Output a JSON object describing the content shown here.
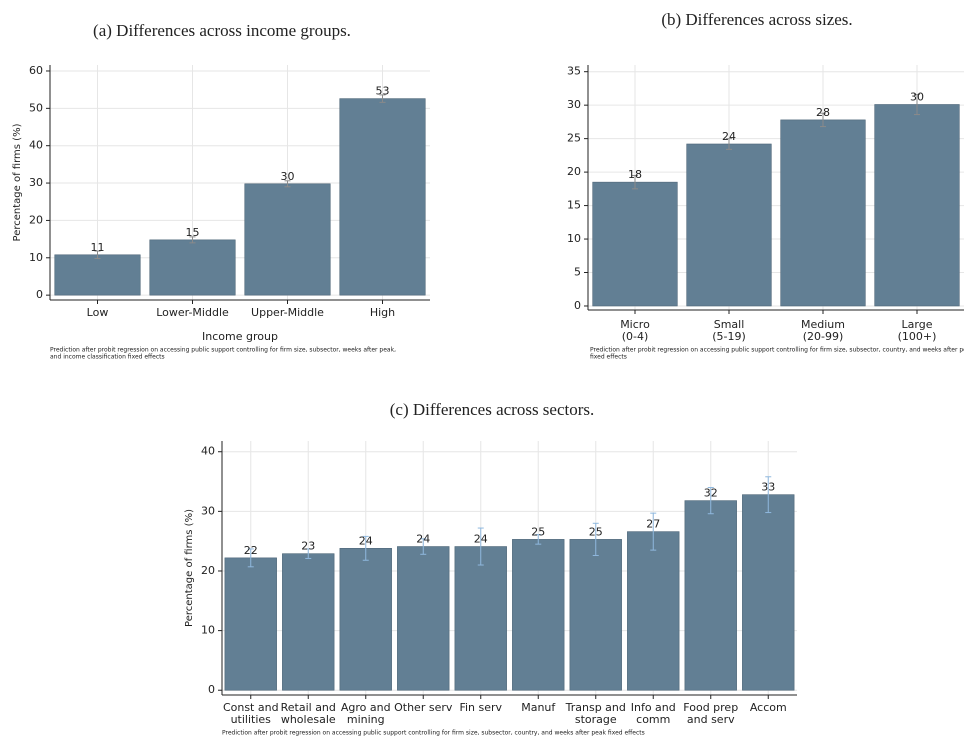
{
  "chart_data": [
    {
      "type": "bar",
      "title": "(a) Differences across income groups.",
      "categories": [
        [
          "Low"
        ],
        [
          "Lower-Middle"
        ],
        [
          "Upper-Middle"
        ],
        [
          "High"
        ]
      ],
      "values": [
        10.8,
        14.8,
        29.8,
        52.6
      ],
      "value_labels": [
        "11",
        "15",
        "30",
        "53"
      ],
      "errors": [
        1.0,
        0.8,
        0.8,
        1.0
      ],
      "ylim": [
        -1.3,
        61.6
      ],
      "yticks": [
        0,
        10,
        20,
        30,
        40,
        50,
        60
      ],
      "ylabel": "Percentage of firms (%)",
      "xlabel": "Income group",
      "note": [
        "Prediction after probit regression on accessing public support controlling for firm size, subsector, weeks after peak,",
        "and income classification fixed effects"
      ],
      "color": "#627f94",
      "error_color": "#8a8a8a",
      "grid": true
    },
    {
      "type": "bar",
      "title": "(b) Differences across sizes.",
      "categories": [
        [
          "Micro",
          "(0-4)"
        ],
        [
          "Small",
          "(5-19)"
        ],
        [
          "Medium",
          "(20-99)"
        ],
        [
          "Large",
          "(100+)"
        ]
      ],
      "values": [
        18.5,
        24.2,
        27.8,
        30.1
      ],
      "value_labels": [
        "18",
        "24",
        "28",
        "30"
      ],
      "errors": [
        1.0,
        0.8,
        1.0,
        1.5
      ],
      "ylim": [
        -0.6,
        36
      ],
      "yticks": [
        0,
        5,
        10,
        15,
        20,
        25,
        30,
        35
      ],
      "ylabel": "Percentage of firms (%)",
      "note": [
        "Prediction after probit regression on accessing public support controlling for firm size, subsector, country, and weeks after peak",
        "fixed effects"
      ],
      "color": "#627f94",
      "error_color": "#8a8a8a",
      "grid": true
    },
    {
      "type": "bar",
      "title": "(c) Differences across sectors.",
      "categories": [
        [
          "Const and",
          "utilities"
        ],
        [
          "Retail and",
          "wholesale"
        ],
        [
          "Agro and",
          "mining"
        ],
        [
          "Other serv"
        ],
        [
          "Fin serv"
        ],
        [
          "Manuf"
        ],
        [
          "Transp and",
          "storage"
        ],
        [
          "Info and",
          "comm"
        ],
        [
          "Food prep",
          "and serv"
        ],
        [
          "Accom"
        ]
      ],
      "values": [
        22.2,
        22.9,
        23.8,
        24.1,
        24.1,
        25.3,
        25.3,
        26.6,
        31.8,
        32.8
      ],
      "value_labels": [
        "22",
        "23",
        "24",
        "24",
        "24",
        "25",
        "25",
        "27",
        "32",
        "33"
      ],
      "errors": [
        1.5,
        0.8,
        2.0,
        1.3,
        3.1,
        0.8,
        2.7,
        3.1,
        2.2,
        3.0
      ],
      "ylim": [
        -0.8,
        41.8
      ],
      "yticks": [
        0,
        10,
        20,
        30,
        40
      ],
      "ylabel": "Percentage of firms (%)",
      "note": [
        "Prediction after probit regression on accessing public support controlling for firm size, subsector, country, and weeks after peak fixed effects"
      ],
      "color": "#627f94",
      "error_color": "#8fb8de",
      "grid": true
    }
  ]
}
